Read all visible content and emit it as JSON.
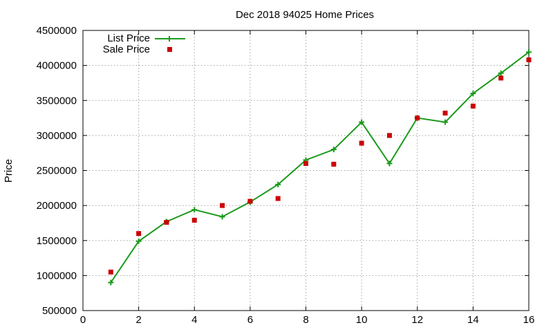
{
  "chart_data": {
    "type": "line",
    "title": "Dec 2018 94025 Home Prices",
    "xlabel": "",
    "ylabel": "Price",
    "xlim": [
      0,
      16
    ],
    "ylim": [
      500000,
      4500000
    ],
    "x_ticks": [
      "0",
      "2",
      "4",
      "6",
      "8",
      "10",
      "12",
      "14",
      "16"
    ],
    "y_ticks": [
      "500000",
      "1000000",
      "1500000",
      "2000000",
      "2500000",
      "3000000",
      "3500000",
      "4000000",
      "4500000"
    ],
    "grid": true,
    "legend_position": "top-left",
    "series": [
      {
        "name": "List Price",
        "style": "line+crosses",
        "color": "#1a9a1a",
        "x": [
          1,
          2,
          3,
          4,
          5,
          6,
          7,
          8,
          9,
          10,
          11,
          12,
          13,
          14,
          15,
          16
        ],
        "y": [
          900000,
          1490000,
          1770000,
          1940000,
          1840000,
          2050000,
          2300000,
          2650000,
          2800000,
          3190000,
          2600000,
          3250000,
          3190000,
          3600000,
          3890000,
          4190000
        ]
      },
      {
        "name": "Sale Price",
        "style": "squares",
        "color": "#cc0000",
        "x": [
          1,
          2,
          3,
          4,
          5,
          6,
          7,
          8,
          9,
          10,
          11,
          12,
          13,
          14,
          15,
          16
        ],
        "y": [
          1050000,
          1600000,
          1760000,
          1790000,
          2000000,
          2060000,
          2100000,
          2600000,
          2590000,
          2890000,
          3000000,
          3250000,
          3320000,
          3420000,
          3820000,
          4080000
        ]
      }
    ]
  }
}
